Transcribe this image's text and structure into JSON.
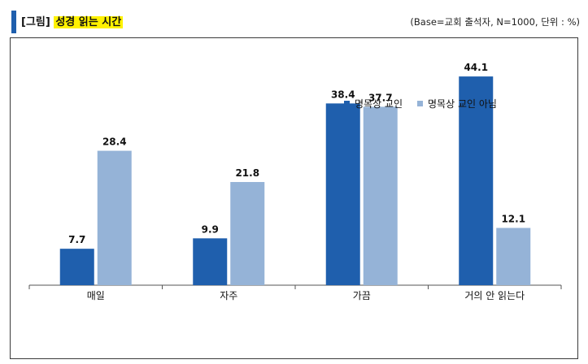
{
  "header": {
    "title_prefix": "[그림]",
    "title_main": "성경 읽는 시간",
    "base_note": "(Base=교회 출석자, N=1000, 단위 : %)"
  },
  "colors": {
    "series1": "#1f5fad",
    "series2": "#95b3d7",
    "accent_bar": "#1f5fad",
    "highlight": "#fff200"
  },
  "chart_data": {
    "type": "bar",
    "categories": [
      "매일",
      "자주",
      "가끔",
      "거의 안 읽는다"
    ],
    "series": [
      {
        "name": "명목상 교인",
        "values": [
          7.7,
          9.9,
          38.4,
          44.1
        ]
      },
      {
        "name": "명목상 교인 아님",
        "values": [
          28.4,
          21.8,
          37.7,
          12.1
        ]
      }
    ],
    "value_labels": [
      [
        "7.7",
        "9.9",
        "38.4",
        "44.1"
      ],
      [
        "28.4",
        "21.8",
        "37.7",
        "12.1"
      ]
    ],
    "ylim": [
      0,
      50
    ],
    "grid": false,
    "legend": "top-right"
  }
}
